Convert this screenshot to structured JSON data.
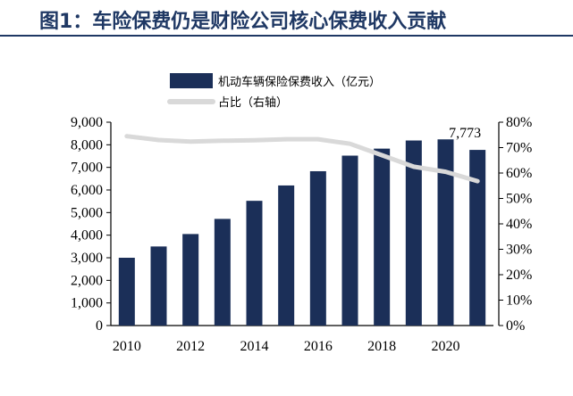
{
  "figure": {
    "title": "图1：车险保费仍是财险公司核心保费收入贡献"
  },
  "chart_data": {
    "type": "bar+line",
    "years": [
      2010,
      2011,
      2012,
      2013,
      2014,
      2015,
      2016,
      2017,
      2018,
      2019,
      2020,
      2021
    ],
    "x_tick_labels": [
      "2010",
      "2012",
      "2014",
      "2016",
      "2018",
      "2020"
    ],
    "series": [
      {
        "name": "机动车辆保险保费收入（亿元）",
        "kind": "bar",
        "axis": "left",
        "color": "#1b2f58",
        "values": [
          3000,
          3500,
          4050,
          4720,
          5520,
          6200,
          6830,
          7520,
          7830,
          8190,
          8240,
          7773
        ]
      },
      {
        "name": "占比（右轴）",
        "kind": "line",
        "axis": "right",
        "color": "#d9d9d9",
        "values": [
          74.5,
          73,
          72.4,
          72.7,
          72.9,
          73.3,
          73.3,
          71.5,
          67,
          62.5,
          60.5,
          56.8
        ]
      }
    ],
    "left_axis": {
      "min": 0,
      "max": 9000,
      "step": 1000,
      "tick_labels": [
        "0",
        "1,000",
        "2,000",
        "3,000",
        "4,000",
        "5,000",
        "6,000",
        "7,000",
        "8,000",
        "9,000"
      ]
    },
    "right_axis": {
      "min": 0,
      "max": 80,
      "step": 10,
      "tick_labels": [
        "0%",
        "10%",
        "20%",
        "30%",
        "40%",
        "50%",
        "60%",
        "70%",
        "80%"
      ]
    },
    "annotation": {
      "text": "7,773",
      "year": 2021
    },
    "legend_position": "top-center"
  }
}
